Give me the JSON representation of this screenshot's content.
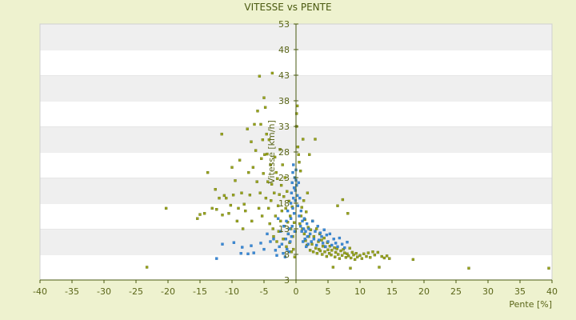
{
  "chart_data": {
    "type": "scatter",
    "title": "VITESSE vs PENTE",
    "xlabel": "Pente [%]",
    "ylabel": "Vitesse [km/h]",
    "xlim": [
      -40,
      40
    ],
    "ylim": [
      3,
      53
    ],
    "x_ticks": [
      -40,
      -35,
      -30,
      -25,
      -20,
      -15,
      -10,
      -5,
      0,
      5,
      10,
      15,
      20,
      25,
      30,
      35,
      40
    ],
    "y_ticks": [
      3,
      8,
      13,
      18,
      23,
      28,
      33,
      38,
      43,
      48,
      53
    ],
    "grid": "horizontal alternating bands",
    "legend": "none",
    "colors": {
      "series_1": "#9aa51c",
      "series_2": "#3a8ad6",
      "band": "#efefef",
      "axis": "#4a5a10"
    },
    "series": [
      {
        "color": "#9aa51c",
        "points": [
          [
            -23.3,
            5.5
          ],
          [
            -20.3,
            17
          ],
          [
            -15.4,
            15
          ],
          [
            -15,
            15.8
          ],
          [
            -14.3,
            16
          ],
          [
            -13.8,
            24
          ],
          [
            -13.1,
            17
          ],
          [
            -12.6,
            20.7
          ],
          [
            -12.4,
            16.8
          ],
          [
            -12,
            19
          ],
          [
            -11.6,
            31.5
          ],
          [
            -11.5,
            15.7
          ],
          [
            -11.2,
            19.5
          ],
          [
            -10.9,
            19
          ],
          [
            -10.5,
            16
          ],
          [
            -10.2,
            17.6
          ],
          [
            -10,
            25
          ],
          [
            -9.8,
            19.6
          ],
          [
            -9.5,
            22.4
          ],
          [
            -9.2,
            14.5
          ],
          [
            -9.0,
            17.0
          ],
          [
            -8.8,
            26.4
          ],
          [
            -8.5,
            20
          ],
          [
            -8.3,
            13
          ],
          [
            -8.1,
            17.8
          ],
          [
            -7.9,
            16.5
          ],
          [
            -7.6,
            32.5
          ],
          [
            -7.4,
            24
          ],
          [
            -7.2,
            19.6
          ],
          [
            -7.0,
            30
          ],
          [
            -6.9,
            14.5
          ],
          [
            -6.7,
            25
          ],
          [
            -6.5,
            33.4
          ],
          [
            -6.3,
            28.3
          ],
          [
            -6.1,
            22.2
          ],
          [
            -6.0,
            36
          ],
          [
            -5.8,
            17
          ],
          [
            -5.7,
            42.8
          ],
          [
            -5.6,
            20
          ],
          [
            -5.5,
            33.4
          ],
          [
            -5.4,
            26.7
          ],
          [
            -5.3,
            15.5
          ],
          [
            -5.2,
            30.4
          ],
          [
            -5.1,
            23.8
          ],
          [
            -5.0,
            38.6
          ],
          [
            -4.9,
            27.5
          ],
          [
            -4.8,
            36.7
          ],
          [
            -4.7,
            19
          ],
          [
            -4.6,
            31.5
          ],
          [
            -4.5,
            27.6
          ],
          [
            -4.4,
            22.2
          ],
          [
            -4.3,
            17
          ],
          [
            -4.2,
            30.4
          ],
          [
            -4.1,
            14
          ],
          [
            -4.0,
            25.5
          ],
          [
            -3.9,
            18.5
          ],
          [
            -3.8,
            21.7
          ],
          [
            -3.7,
            43.4
          ],
          [
            -3.6,
            13
          ],
          [
            -3.5,
            11.5
          ],
          [
            -3.4,
            20
          ],
          [
            -3.3,
            27
          ],
          [
            -3.2,
            15.5
          ],
          [
            -3.1,
            24
          ],
          [
            -3.0,
            10.5
          ],
          [
            -2.9,
            22.8
          ],
          [
            -2.8,
            17.5
          ],
          [
            -2.7,
            12.5
          ],
          [
            -2.6,
            19.7
          ],
          [
            -2.5,
            28.5
          ],
          [
            -2.4,
            14.5
          ],
          [
            -2.3,
            21.5
          ],
          [
            -2.2,
            16.5
          ],
          [
            -2.1,
            25.5
          ],
          [
            -2.0,
            11
          ],
          [
            -1.9,
            19.3
          ],
          [
            -1.8,
            13.5
          ],
          [
            -1.7,
            23
          ],
          [
            -1.6,
            17
          ],
          [
            -1.5,
            9.5
          ],
          [
            -1.4,
            20.3
          ],
          [
            -1.3,
            14.3
          ],
          [
            -1.2,
            12
          ],
          [
            -1.1,
            18.4
          ],
          [
            -1.0,
            10.3
          ],
          [
            -0.9,
            15.5
          ],
          [
            -0.8,
            13
          ],
          [
            -0.7,
            8.5
          ],
          [
            -0.6,
            17.3
          ],
          [
            -0.5,
            11.5
          ],
          [
            -0.4,
            9
          ],
          [
            -0.3,
            14.2
          ],
          [
            -0.2,
            7.5
          ],
          [
            -0.1,
            12.5
          ],
          [
            0.1,
            35.5
          ],
          [
            0.1,
            33
          ],
          [
            0.2,
            37
          ],
          [
            0.3,
            29
          ],
          [
            0.4,
            27.5
          ],
          [
            0.5,
            26
          ],
          [
            0.6,
            14
          ],
          [
            0.7,
            24.3
          ],
          [
            0.8,
            15.5
          ],
          [
            0.9,
            17.2
          ],
          [
            1.0,
            13
          ],
          [
            1.1,
            30.5
          ],
          [
            1.2,
            18.5
          ],
          [
            1.3,
            12
          ],
          [
            1.4,
            14.8
          ],
          [
            1.5,
            10.7
          ],
          [
            1.6,
            16.3
          ],
          [
            1.7,
            9.8
          ],
          [
            1.8,
            20
          ],
          [
            1.9,
            13.3
          ],
          [
            2.0,
            11.5
          ],
          [
            2.1,
            27.5
          ],
          [
            2.2,
            8.8
          ],
          [
            2.3,
            12.8
          ],
          [
            2.5,
            10
          ],
          [
            2.6,
            14.5
          ],
          [
            2.7,
            8.5
          ],
          [
            2.8,
            11.5
          ],
          [
            3.0,
            30.5
          ],
          [
            3.1,
            9.2
          ],
          [
            3.2,
            13
          ],
          [
            3.3,
            8.2
          ],
          [
            3.5,
            10.5
          ],
          [
            3.6,
            9
          ],
          [
            3.7,
            12
          ],
          [
            3.8,
            8.7
          ],
          [
            4.0,
            10.8
          ],
          [
            4.1,
            8
          ],
          [
            4.2,
            9.6
          ],
          [
            4.4,
            11.2
          ],
          [
            4.5,
            8.5
          ],
          [
            4.6,
            9.5
          ],
          [
            4.8,
            7.6
          ],
          [
            4.9,
            10.3
          ],
          [
            5.0,
            8.9
          ],
          [
            5.2,
            8.2
          ],
          [
            5.3,
            9.6
          ],
          [
            5.5,
            7.9
          ],
          [
            5.6,
            8.8
          ],
          [
            5.8,
            5.5
          ],
          [
            6.0,
            9.3
          ],
          [
            6.1,
            7.5
          ],
          [
            6.2,
            8.4
          ],
          [
            6.4,
            9.1
          ],
          [
            6.5,
            17.5
          ],
          [
            6.6,
            8
          ],
          [
            6.8,
            7.2
          ],
          [
            7.0,
            8.7
          ],
          [
            7.2,
            7.8
          ],
          [
            7.3,
            18.7
          ],
          [
            7.4,
            9
          ],
          [
            7.6,
            8.3
          ],
          [
            7.8,
            7.4
          ],
          [
            8.0,
            8.1
          ],
          [
            8.1,
            16
          ],
          [
            8.2,
            7.7
          ],
          [
            8.4,
            9.2
          ],
          [
            8.5,
            5.3
          ],
          [
            8.6,
            7.3
          ],
          [
            8.8,
            8.4
          ],
          [
            9.0,
            7.9
          ],
          [
            9.2,
            7
          ],
          [
            9.4,
            8.2
          ],
          [
            9.6,
            7.5
          ],
          [
            10.0,
            7.8
          ],
          [
            10.3,
            7.2
          ],
          [
            10.6,
            8.1
          ],
          [
            11.0,
            7.6
          ],
          [
            11.3,
            8.3
          ],
          [
            11.6,
            7.4
          ],
          [
            12.0,
            8.5
          ],
          [
            12.3,
            7.9
          ],
          [
            12.8,
            8.4
          ],
          [
            13.0,
            5.5
          ],
          [
            13.4,
            7.6
          ],
          [
            13.8,
            7.3
          ],
          [
            14.2,
            7.7
          ],
          [
            14.6,
            7.2
          ],
          [
            18.3,
            7
          ],
          [
            27.0,
            5.3
          ],
          [
            39.5,
            5.3
          ]
        ]
      },
      {
        "color": "#3a8ad6",
        "points": [
          [
            -12.4,
            7.2
          ],
          [
            -11.5,
            10
          ],
          [
            -9.7,
            10.3
          ],
          [
            -8.6,
            8.2
          ],
          [
            -8.4,
            9.4
          ],
          [
            -7.5,
            8.1
          ],
          [
            -7.0,
            9.7
          ],
          [
            -6.6,
            8.3
          ],
          [
            -5.5,
            10.2
          ],
          [
            -5.0,
            9.0
          ],
          [
            -4.5,
            12.0
          ],
          [
            -4.0,
            10.5
          ],
          [
            -3.5,
            11.0
          ],
          [
            -3.2,
            8.8
          ],
          [
            -3.0,
            7.8
          ],
          [
            -2.8,
            15.0
          ],
          [
            -2.6,
            9.5
          ],
          [
            -2.4,
            12.5
          ],
          [
            -2.2,
            10.0
          ],
          [
            -2.0,
            8.2
          ],
          [
            -1.9,
            13.5
          ],
          [
            -1.7,
            7.5
          ],
          [
            -1.6,
            11.0
          ],
          [
            -1.5,
            14.5
          ],
          [
            -1.4,
            9.0
          ],
          [
            -1.3,
            16.5
          ],
          [
            -1.2,
            12.0
          ],
          [
            -1.1,
            8.5
          ],
          [
            -1.0,
            13.0
          ],
          [
            -0.9,
            10.5
          ],
          [
            -0.8,
            18.0
          ],
          [
            -0.8,
            15.0
          ],
          [
            -0.7,
            11.5
          ],
          [
            -0.7,
            20.0
          ],
          [
            -0.6,
            13.5
          ],
          [
            -0.6,
            22.0
          ],
          [
            -0.5,
            17.0
          ],
          [
            -0.5,
            24.0
          ],
          [
            -0.4,
            19.0
          ],
          [
            -0.4,
            25.5
          ],
          [
            -0.3,
            21.0
          ],
          [
            -0.3,
            16.0
          ],
          [
            -0.2,
            23.0
          ],
          [
            -0.2,
            12.5
          ],
          [
            -0.1,
            20.5
          ],
          [
            -0.1,
            18.5
          ],
          [
            0.0,
            24.5
          ],
          [
            0.0,
            22.5
          ],
          [
            0.1,
            21.5
          ],
          [
            0.2,
            19.5
          ],
          [
            0.3,
            17.5
          ],
          [
            0.4,
            22.0
          ],
          [
            0.5,
            15.5
          ],
          [
            0.6,
            19.0
          ],
          [
            0.7,
            13.5
          ],
          [
            0.8,
            16.5
          ],
          [
            0.9,
            12.5
          ],
          [
            1.0,
            14.5
          ],
          [
            1.1,
            10.5
          ],
          [
            1.2,
            13.0
          ],
          [
            1.3,
            15.0
          ],
          [
            1.4,
            11.0
          ],
          [
            1.5,
            12.5
          ],
          [
            1.6,
            9.5
          ],
          [
            1.7,
            14.0
          ],
          [
            1.8,
            11.5
          ],
          [
            1.9,
            10.0
          ],
          [
            2.0,
            13.0
          ],
          [
            2.2,
            12.0
          ],
          [
            2.4,
            10.5
          ],
          [
            2.6,
            14.5
          ],
          [
            2.8,
            11.0
          ],
          [
            3.0,
            12.5
          ],
          [
            3.2,
            9.8
          ],
          [
            3.4,
            13.5
          ],
          [
            3.6,
            10.8
          ],
          [
            3.8,
            12.2
          ],
          [
            4.0,
            11.5
          ],
          [
            4.2,
            10.2
          ],
          [
            4.4,
            12.8
          ],
          [
            4.6,
            9.5
          ],
          [
            4.8,
            11.8
          ],
          [
            5.0,
            10.5
          ],
          [
            5.3,
            12.0
          ],
          [
            5.6,
            9.8
          ],
          [
            5.9,
            11.0
          ],
          [
            6.2,
            10.2
          ],
          [
            6.5,
            9.5
          ],
          [
            6.8,
            11.2
          ],
          [
            7.2,
            10.0
          ],
          [
            7.6,
            9.3
          ],
          [
            8.0,
            10.4
          ]
        ]
      }
    ]
  }
}
